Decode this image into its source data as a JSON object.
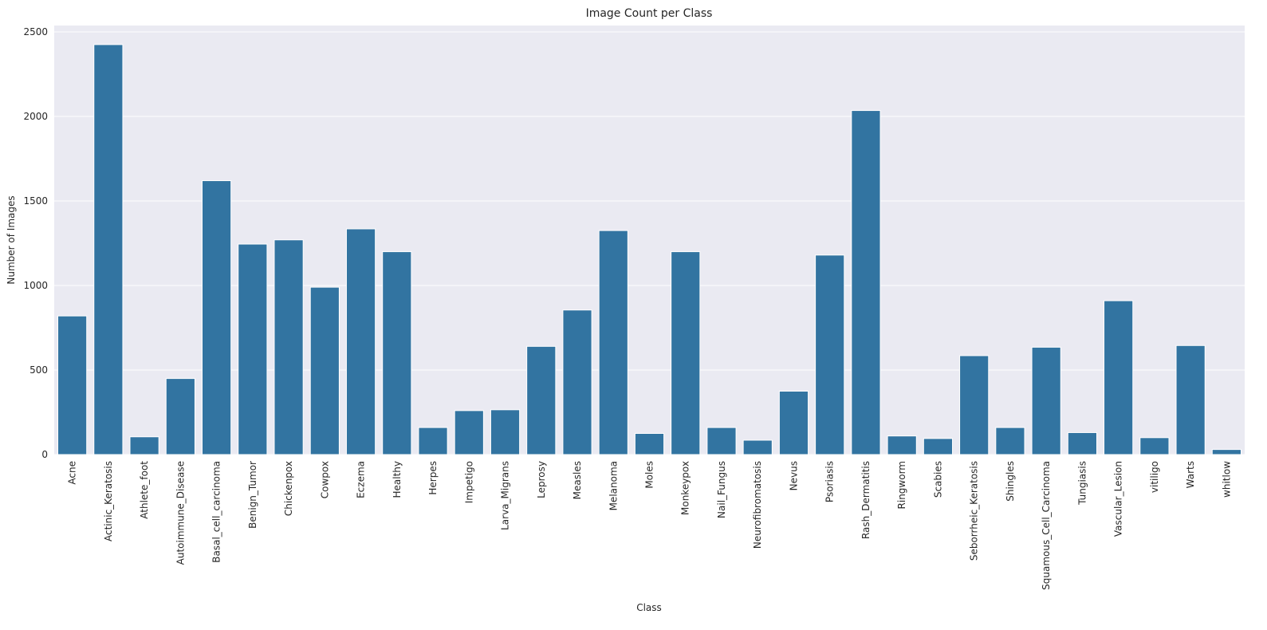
{
  "chart_data": {
    "type": "bar",
    "title": "Image Count per Class",
    "xlabel": "Class",
    "ylabel": "Number of Images",
    "ylim": [
      0,
      2500
    ],
    "yticks": [
      0,
      500,
      1000,
      1500,
      2000,
      2500
    ],
    "grid": true,
    "legend": "none",
    "bar_color": "#3274a1",
    "background_color": "#eaeaf2",
    "categories": [
      "Acne",
      "Actinic_Keratosis",
      "Athlete_foot",
      "Autoimmune_Disease",
      "Basal_cell_carcinoma",
      "Benign_Tumor",
      "Chickenpox",
      "Cowpox",
      "Eczema",
      "Healthy",
      "Herpes",
      "Impetigo",
      "Larva_Migrans",
      "Leprosy",
      "Measles",
      "Melanoma",
      "Moles",
      "Monkeypox",
      "Nail_Fungus",
      "Neurofibromatosis",
      "Nevus",
      "Psoriasis",
      "Rash_Dermatitis",
      "Ringworm",
      "Scabies",
      "Seborrheic_Keratosis",
      "Shingles",
      "Squamous_Cell_Carcinoma",
      "Tungiasis",
      "Vascular_Lesion",
      "vitiligo",
      "Warts",
      "whitlow"
    ],
    "values": [
      820,
      2425,
      105,
      450,
      1620,
      1245,
      1270,
      990,
      1335,
      1200,
      160,
      260,
      265,
      640,
      855,
      1325,
      125,
      1200,
      160,
      85,
      375,
      1180,
      2035,
      110,
      95,
      585,
      160,
      635,
      130,
      910,
      100,
      645,
      30
    ]
  }
}
